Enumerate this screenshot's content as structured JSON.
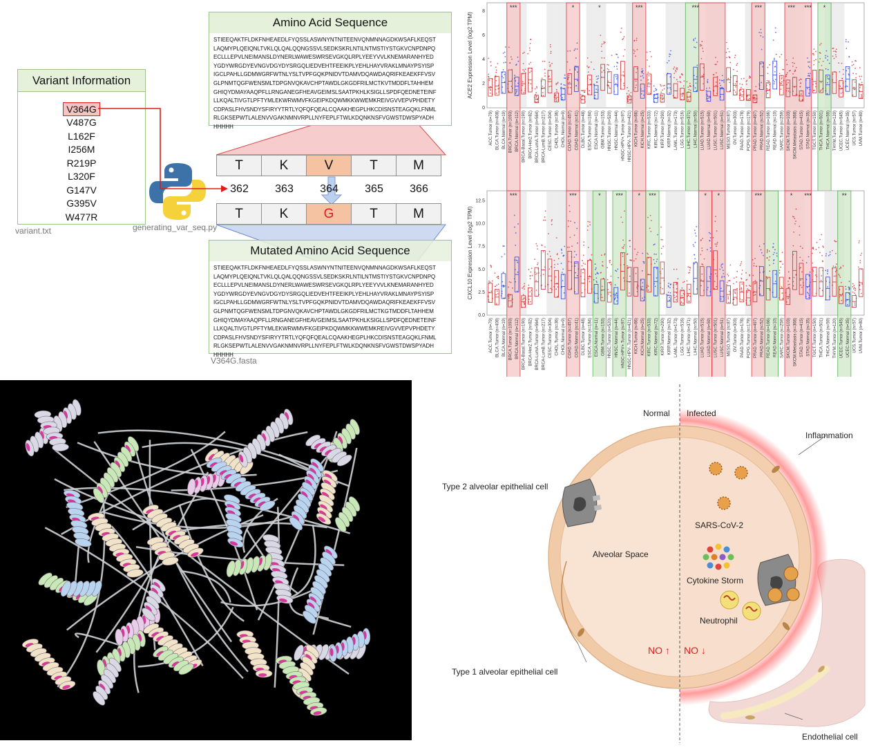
{
  "variant_panel": {
    "title": "Variant Information",
    "variants": [
      "V364G",
      "V487G",
      "L162F",
      "I256M",
      "R219P",
      "L320F",
      "G147V",
      "G395V",
      "W477R"
    ],
    "file_caption": "variant.txt",
    "script_caption": "generating_var_seq.py"
  },
  "sequence_panel": {
    "title": "Amino Acid Sequence",
    "lines": [
      "STIEEQAKTFLDKFNHEAEDLFYQSSLASWNYNTNITEENVQNMNNAGDKWSAFLKEQST",
      "LAQMYPLQEIQNLTVKLQLQALQQNGSSVLSEDKSKRLNTILNTMSTIYSTGKVCNPDNPQ",
      "ECLLLEPVLNEIMANSLDYNERLWAWESWRSEVGKQLRPLYEEYVVLKNEMARANHYED",
      "YGDYWRGDYEVNGVDGYDYSRGQLIEDVEHTFEEIKPLYEHLHAYVRAKLMNAYPSYISP",
      "IGCLPAHLLGDMWGRFWTNLYSLTVPFGQKPNIDVTDAMVDQAWDAQRIFKEAEKFFVSV",
      "GLPNMTQGFWENSMLTDPGNVQKAVCHPTAWDLGKGDFRILMCTKVTMDDFLTAHHEM",
      "GHIQYDMAYAAQPFLLRNGANEGFHEAVGEIMSLSAATPKHLKSIGLLSPDFQEDNETEINF",
      "LLKQALTIVGTLPFTYMLEKWRWMVFKGEIPKDQWMKKWWEMKREIVGVVEPVPHDETY",
      "CDPASLFHVSNDYSFIRYYTRTLYQFQFQEALCQAAKHEGPLHKCDISNSTEAGQKLFNML",
      "RLGKSEPWTLALENVVGAKNMNVRPLLNYFEPLFTWLKDQNKNSFVGWSTDWSPYADH",
      "HHHHH"
    ],
    "ref_row": [
      "T",
      "K",
      "V",
      "T",
      "M"
    ],
    "positions": [
      "362",
      "363",
      "364",
      "365",
      "366"
    ],
    "mut_row": [
      "T",
      "K",
      "G",
      "T",
      "M"
    ],
    "mut_title": "Mutated Amino Acid Sequence",
    "mut_lines": [
      "STIEEQAKTFLDKFNHEAEDLFYQSSLASWNYNTNITEENVQNMNNAGDKWSAFLKEQST",
      "LAQMYPLQEIQNLTVKLQLQALQQNGSSVLSEDKSKRLNTILNTMSTIYSTGKVCNPDNPQ",
      "ECLLLEPVLNEIMANSLDYNERLWAWESWRSEVGKQLRPLYEEYVVLKNEMARANHYED",
      "YGDYWRGDYEVNGVDGYDYSRGQLIEDVEHTFEEIKPLYEHLHAYVRAKLMNAYPSYISP",
      "IGCLPAHLLGDMWGRFWTNLYSLTVPFGQKPNIDVTDAMVDQAWDAQRIFKEAEKFFVSV",
      "GLPNMTQGFWENSMLTDPGNVQKAVCHPTAWDLGKGDFRILMCTKGTMDDFLTAHHEM",
      "GHIQYDMAYAAQPFLLRNGANEGFHEAVGEIMSLSAATPKHLKSIGLLSPDFQEDNETEINF",
      "LLKQALTIVGTLPFTYMLEKWRWMVFKGEIPKDQWMKKWWEMKREIVGVVEPVPHDETY",
      "CDPASLFHVSNDYSFIRYYTRTLYQFQFQEALCQAAKHEGPLHKCDISNSTEAGQKLFNML",
      "RLGKSEPWTLALENVVGAKNMNVRPLLNYFEPLFTWLKDQNKNSFVGWSTDWSPYADH",
      "HHHHH"
    ],
    "fasta_caption": "V364G.fasta"
  },
  "colors": {
    "green_header": "#e6f1dc",
    "green_border": "#9cc48a",
    "red": "#e01b1b",
    "highlight": "#f5c3a1",
    "tumor": "#d62728",
    "normal": "#2c3fe0",
    "red_band": "#f6c8c8",
    "green_band": "#cfe8c8",
    "grey_band": "#d6d6d6"
  },
  "expression_plots": {
    "ace2": {
      "ylabel": "ACE2 Expression Level (log2 TPM)",
      "yticks": [
        "0",
        "2",
        "4",
        "6",
        "8"
      ],
      "sig": [
        "***",
        "*",
        "*",
        "***",
        "***",
        "***",
        "***",
        "***",
        "*"
      ]
    },
    "cxcl10": {
      "ylabel": "CXCL10 Expression Level (log2 TPM)",
      "yticks": [
        "0.0",
        "2.5",
        "5.0",
        "7.5",
        "10.0",
        "12.5"
      ],
      "sig": [
        "***",
        "***",
        "*",
        "***",
        "*",
        "***",
        "*",
        "*",
        "***",
        "*",
        "***",
        "**"
      ]
    },
    "ace2_categories": [
      "ACC.Tumor (n=79)",
      "BLCA.Tumor (n=408)",
      "BLCA.Normal (n=19)",
      "BRCA.Tumor (n=1093)",
      "BRCA.Normal (n=112)",
      "BRCA-Basal.Tumor (n=190)",
      "BRCA-Her2.Tumor (n=82)",
      "BRCA-LumA.Tumor (n=564)",
      "BRCA-LumB.Tumor (n=217)",
      "CESC.Tumor (n=304)",
      "CHOL.Tumor (n=36)",
      "CHOL.Normal (n=9)",
      "COAD.Tumor (n=457)",
      "COAD.Normal (n=41)",
      "DLBC.Tumor (n=48)",
      "ESCA.Tumor (n=184)",
      "ESCA.Normal (n=11)",
      "GBM.Tumor (n=153)",
      "HNSC.Tumor (n=520)",
      "HNSC.Normal (n=44)",
      "HNSC-HPV+.Tumor (n=97)",
      "HNSC-HPV-.Tumor (n=421)",
      "KICH.Tumor (n=66)",
      "KICH.Normal (n=25)",
      "KIRC.Tumor (n=533)",
      "KIRC.Normal (n=72)",
      "KIRP.Tumor (n=290)",
      "KIRP.Normal (n=32)",
      "LAML.Tumor (n=173)",
      "LGG.Tumor (n=516)",
      "LIHC.Tumor (n=371)",
      "LIHC.Normal (n=50)",
      "LUAD.Tumor (n=515)",
      "LUAD.Normal (n=59)",
      "LUSC.Tumor (n=501)",
      "LUSC.Normal (n=51)",
      "MESO.Tumor (n=87)",
      "OV.Tumor (n=303)",
      "PAAD.Tumor (n=178)",
      "PCPG.Tumor (n=179)",
      "PRAD.Tumor (n=497)",
      "PRAD.Normal (n=52)",
      "READ.Tumor (n=166)",
      "READ.Normal (n=10)",
      "SARC.Tumor (n=259)",
      "SKCM.Tumor (n=103)",
      "SKCM.Metastasis (n=368)",
      "STAD.Tumor (n=415)",
      "STAD.Normal (n=35)",
      "TGCT.Tumor (n=150)",
      "THCA.Tumor (n=501)",
      "THCA.Normal (n=59)",
      "THYM.Tumor (n=120)",
      "UCEC.Tumor (n=545)",
      "UCEC.Normal (n=35)",
      "UCS.Tumor (n=57)",
      "UVM.Tumor (n=80)"
    ]
  },
  "lung_diagram": {
    "normal_label": "Normal",
    "infected_label": "Infected",
    "inflammation": "Inflammation",
    "type2": "Type 2 alveolar epithelial cell",
    "alveolar_space": "Alveolar Space",
    "sars": "SARS-CoV-2",
    "cytokine": "Cytokine Storm",
    "neutrophil": "Neutrophil",
    "no_up": "NO ↑",
    "no_down": "NO ↓",
    "type1": "Type 1 alveolar epithelial cell",
    "endothelial": "Endothelial cell"
  }
}
